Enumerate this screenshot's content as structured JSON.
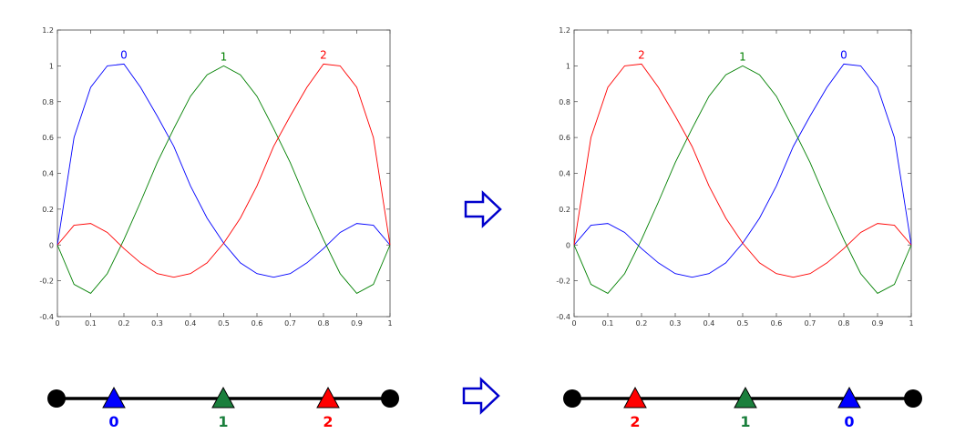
{
  "chart_data": [
    {
      "type": "line",
      "x": [
        0,
        0.05,
        0.1,
        0.15,
        0.2,
        0.25,
        0.3,
        0.35,
        0.4,
        0.45,
        0.5,
        0.55,
        0.6,
        0.65,
        0.7,
        0.75,
        0.8,
        0.85,
        0.9,
        0.95,
        1
      ],
      "series": [
        {
          "name": "0",
          "color": "#0000ff",
          "values": [
            0,
            0.6,
            0.88,
            1.0,
            1.01,
            0.88,
            0.72,
            0.55,
            0.33,
            0.15,
            0.01,
            -0.1,
            -0.16,
            -0.18,
            -0.16,
            -0.1,
            -0.02,
            0.07,
            0.12,
            0.11,
            0
          ]
        },
        {
          "name": "1",
          "color": "#008000",
          "values": [
            0,
            -0.22,
            -0.27,
            -0.16,
            0.03,
            0.24,
            0.46,
            0.65,
            0.83,
            0.95,
            1.0,
            0.95,
            0.83,
            0.65,
            0.46,
            0.24,
            0.03,
            -0.16,
            -0.27,
            -0.22,
            0
          ]
        },
        {
          "name": "2",
          "color": "#ff0000",
          "values": [
            0,
            0.11,
            0.12,
            0.07,
            -0.02,
            -0.1,
            -0.16,
            -0.18,
            -0.16,
            -0.1,
            0.01,
            0.15,
            0.33,
            0.55,
            0.72,
            0.88,
            1.01,
            1.0,
            0.88,
            0.6,
            0
          ]
        }
      ],
      "xlim": [
        0,
        1
      ],
      "ylim": [
        -0.4,
        1.2
      ],
      "xticks": [
        0,
        0.1,
        0.2,
        0.3,
        0.4,
        0.5,
        0.6,
        0.7,
        0.8,
        0.9,
        1
      ],
      "yticks": [
        -0.4,
        -0.2,
        0,
        0.2,
        0.4,
        0.6,
        0.8,
        1,
        1.2
      ]
    },
    {
      "type": "line",
      "x": [
        0,
        0.05,
        0.1,
        0.15,
        0.2,
        0.25,
        0.3,
        0.35,
        0.4,
        0.45,
        0.5,
        0.55,
        0.6,
        0.65,
        0.7,
        0.75,
        0.8,
        0.85,
        0.9,
        0.95,
        1
      ],
      "series": [
        {
          "name": "0",
          "color": "#0000ff",
          "values": [
            0,
            0.11,
            0.12,
            0.07,
            -0.02,
            -0.1,
            -0.16,
            -0.18,
            -0.16,
            -0.1,
            0.01,
            0.15,
            0.33,
            0.55,
            0.72,
            0.88,
            1.01,
            1.0,
            0.88,
            0.6,
            0
          ]
        },
        {
          "name": "1",
          "color": "#008000",
          "values": [
            0,
            -0.22,
            -0.27,
            -0.16,
            0.03,
            0.24,
            0.46,
            0.65,
            0.83,
            0.95,
            1.0,
            0.95,
            0.83,
            0.65,
            0.46,
            0.24,
            0.03,
            -0.16,
            -0.27,
            -0.22,
            0
          ]
        },
        {
          "name": "2",
          "color": "#ff0000",
          "values": [
            0,
            0.6,
            0.88,
            1.0,
            1.01,
            0.88,
            0.72,
            0.55,
            0.33,
            0.15,
            0.01,
            -0.1,
            -0.16,
            -0.18,
            -0.16,
            -0.1,
            -0.02,
            0.07,
            0.12,
            0.11,
            0
          ]
        }
      ],
      "xlim": [
        0,
        1
      ],
      "ylim": [
        -0.4,
        1.2
      ],
      "xticks": [
        0,
        0.1,
        0.2,
        0.3,
        0.4,
        0.5,
        0.6,
        0.7,
        0.8,
        0.9,
        1
      ],
      "yticks": [
        -0.4,
        -0.2,
        0,
        0.2,
        0.4,
        0.6,
        0.8,
        1,
        1.2
      ]
    }
  ],
  "diagrams": [
    {
      "nodes": [
        {
          "label": "0",
          "color": "#0000ff"
        },
        {
          "label": "1",
          "color": "#1a7f3c"
        },
        {
          "label": "2",
          "color": "#ff0000"
        }
      ]
    },
    {
      "nodes": [
        {
          "label": "2",
          "color": "#ff0000"
        },
        {
          "label": "1",
          "color": "#1a7f3c"
        },
        {
          "label": "0",
          "color": "#0000ff"
        }
      ]
    }
  ]
}
